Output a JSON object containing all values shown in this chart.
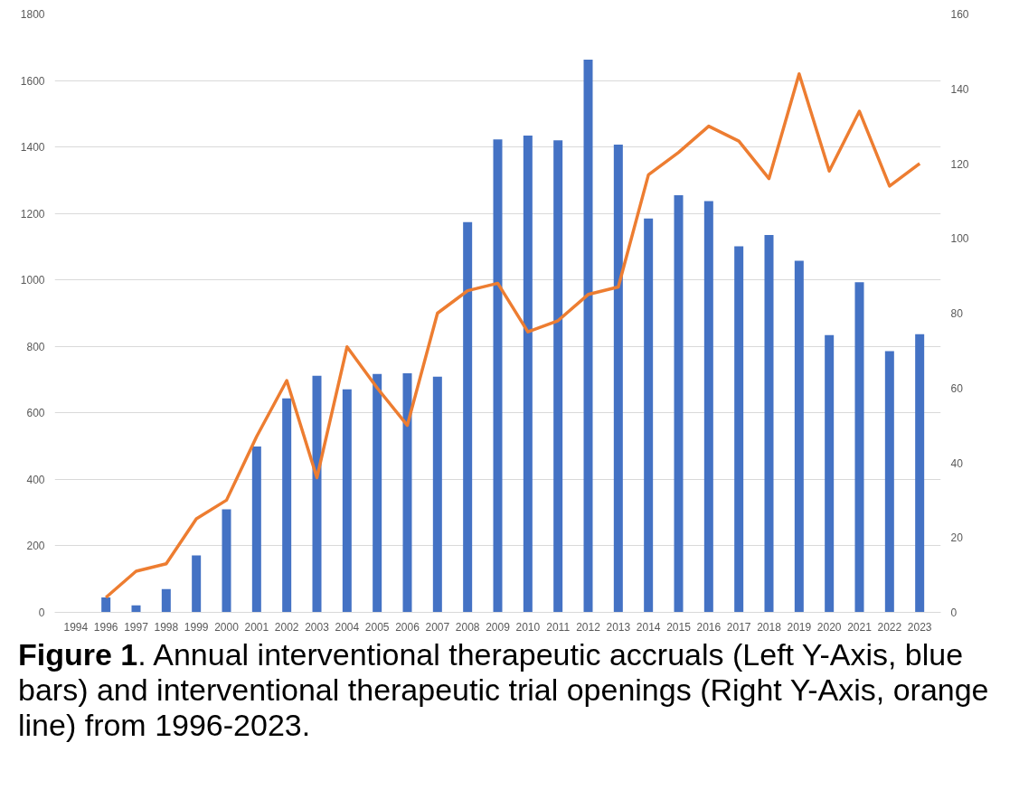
{
  "chart_data": {
    "type": "bar",
    "categories": [
      "1994",
      "1996",
      "1997",
      "1998",
      "1999",
      "2000",
      "2001",
      "2002",
      "2003",
      "2004",
      "2005",
      "2006",
      "2007",
      "2008",
      "2009",
      "2010",
      "2011",
      "2012",
      "2013",
      "2014",
      "2015",
      "2016",
      "2017",
      "2018",
      "2019",
      "2020",
      "2021",
      "2022",
      "2023"
    ],
    "series": [
      {
        "color": "#4472c4",
        "values": [
          null,
          45,
          21,
          70,
          171,
          310,
          499,
          644,
          712,
          671,
          717,
          719,
          709,
          1174,
          1423,
          1434,
          1420,
          1663,
          1407,
          1185,
          1255,
          1237,
          1101,
          1135,
          1058,
          834,
          993,
          786,
          837
        ]
      },
      {
        "type": "line",
        "axis": "y2",
        "color": "#ed7d31",
        "values": [
          null,
          4,
          11,
          13,
          25,
          30,
          47,
          62,
          36,
          71,
          60,
          50,
          80,
          86,
          88,
          75,
          78,
          85,
          87,
          117,
          123,
          130,
          126,
          116,
          144,
          118,
          134,
          114,
          120
        ]
      }
    ],
    "ylim": [
      0,
      1800
    ],
    "yticks": [
      0,
      200,
      400,
      600,
      800,
      1000,
      1200,
      1400,
      1600,
      1800
    ],
    "y2lim": [
      0,
      160
    ],
    "y2ticks": [
      0,
      20,
      40,
      60,
      80,
      100,
      120,
      140,
      160
    ],
    "grid": "y",
    "annotations": [
      "Figure 1. Annual interventional therapeutic accruals (Left Y-Axis, blue bars) and interventional therapeutic trial openings (Right Y-Axis, orange line) from 1996-2023."
    ]
  }
}
